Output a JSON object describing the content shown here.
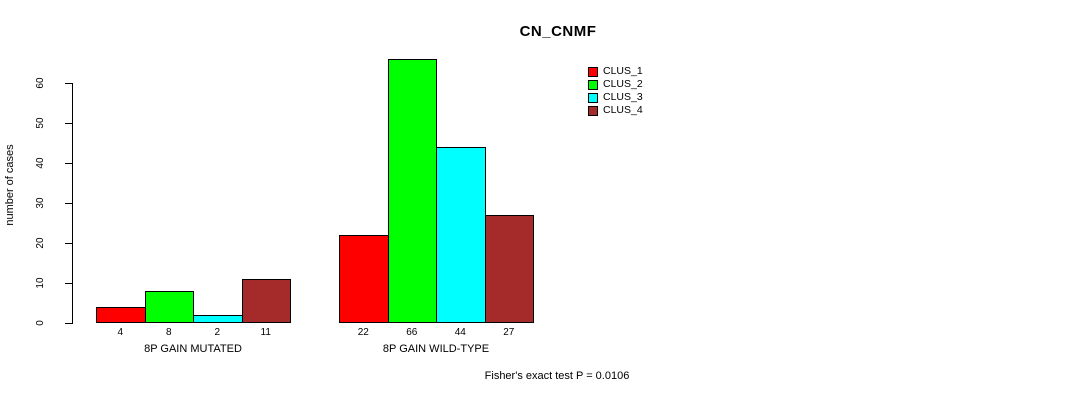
{
  "chart_data": {
    "type": "bar",
    "title": "CN_CNMF",
    "ylabel": "number of cases",
    "xlabel": "",
    "ylim": [
      0,
      66
    ],
    "yticks": [
      0,
      10,
      20,
      30,
      40,
      50,
      60
    ],
    "categories": [
      "8P GAIN MUTATED",
      "8P GAIN WILD-TYPE"
    ],
    "series": [
      {
        "name": "CLUS_1",
        "color": "#FF0000",
        "values": [
          4,
          22
        ]
      },
      {
        "name": "CLUS_2",
        "color": "#00FF00",
        "values": [
          8,
          66
        ]
      },
      {
        "name": "CLUS_3",
        "color": "#00FFFF",
        "values": [
          2,
          44
        ]
      },
      {
        "name": "CLUS_4",
        "color": "#A52A2A",
        "values": [
          11,
          27
        ]
      }
    ],
    "bar_value_labels_shown": true,
    "legend_position": "top-right",
    "grid": false,
    "annotation": "Fisher's exact test P = 0.0106",
    "axis_color": "#000000",
    "background_color": "#FFFFFF"
  }
}
